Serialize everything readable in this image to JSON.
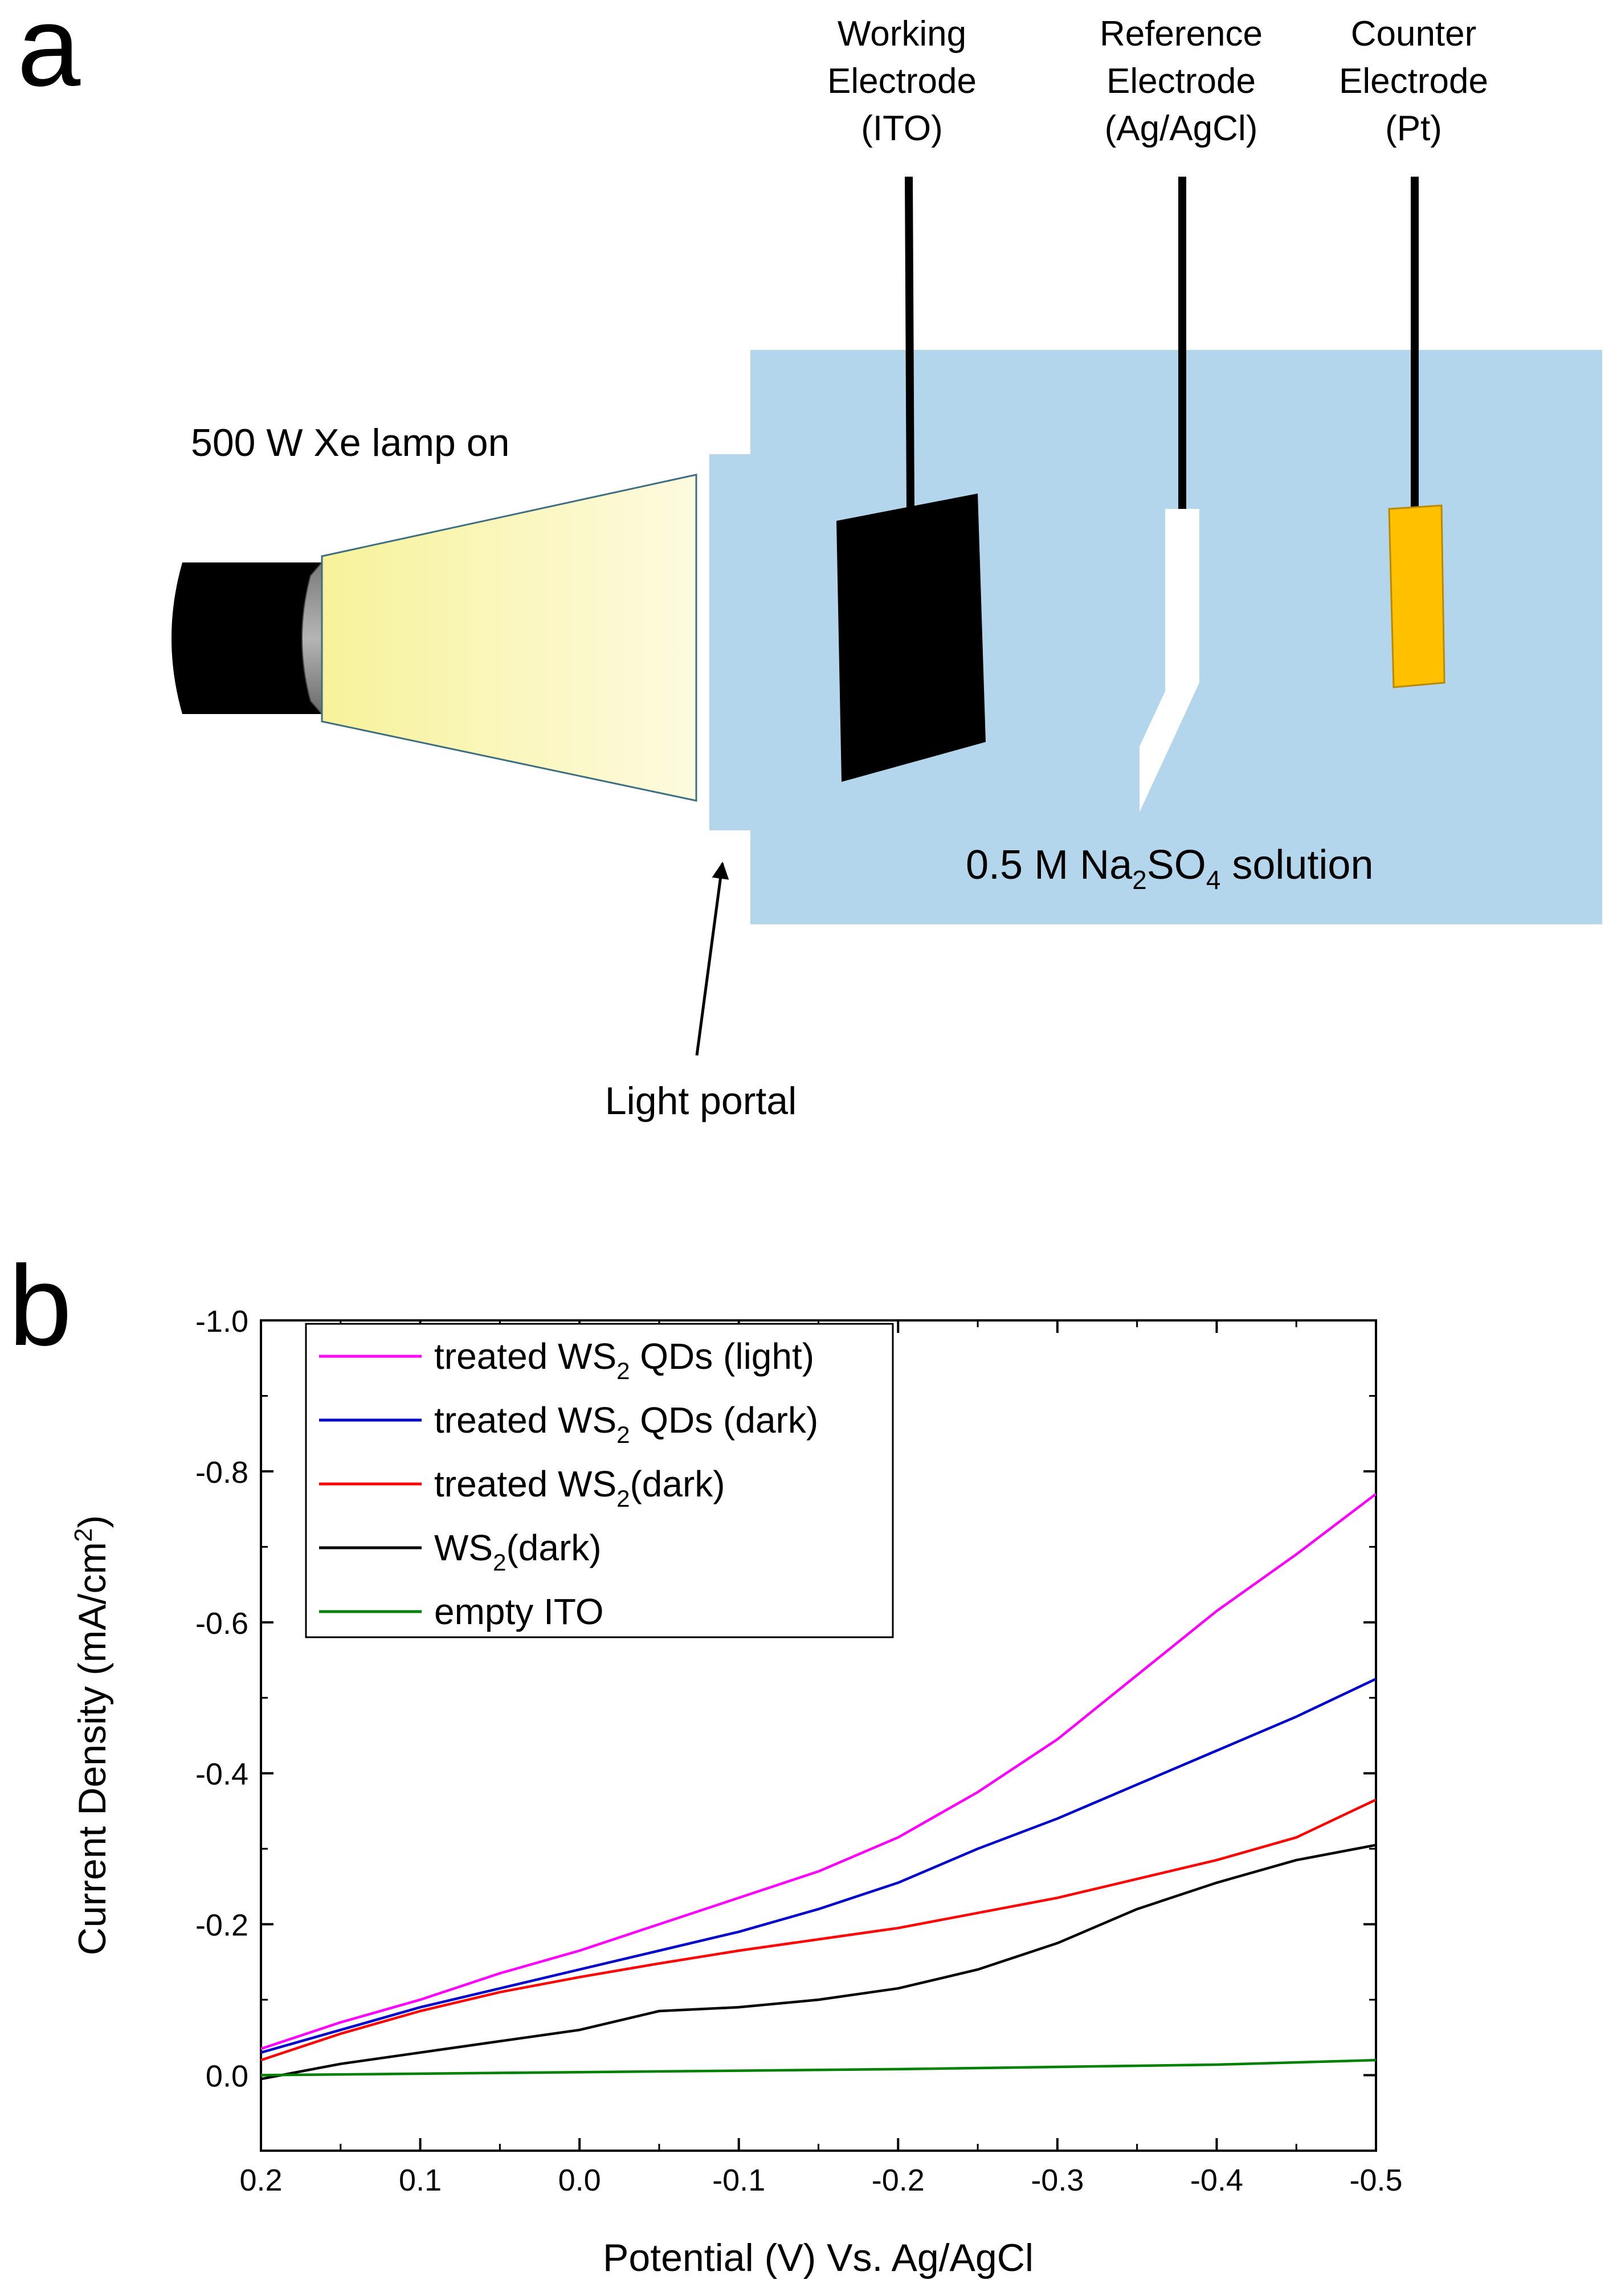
{
  "panel_a": {
    "label": "a",
    "lamp_label": "500 W Xe lamp on",
    "electrodes": [
      {
        "line1": "Working",
        "line2": "Electrode",
        "line3": "(ITO)"
      },
      {
        "line1": "Reference",
        "line2": "Electrode",
        "line3": "(Ag/AgCl)"
      },
      {
        "line1": "Counter",
        "line2": "Electrode",
        "line3": "(Pt)"
      }
    ],
    "solution": {
      "pre": "0.5 M Na",
      "sub1": "2",
      "mid": "SO",
      "sub2": "4",
      "post": " solution"
    },
    "portal_label": "Light portal",
    "colors": {
      "solution": "#b4d6ec",
      "light_beam": "#fbf8bf",
      "counter_electrode": "#ffc000",
      "lamp": "#000000"
    }
  },
  "panel_b": {
    "label": "b",
    "xlabel": "Potential (V) Vs. Ag/AgCl",
    "ylabel": {
      "pre": "Current Density (mA/cm",
      "sup": "2",
      "post": ")"
    },
    "legend": [
      {
        "pre": "treated WS",
        "sub": "2",
        "post": " QDs (light)"
      },
      {
        "pre": "treated WS",
        "sub": "2",
        "post": " QDs (dark)"
      },
      {
        "pre": "treated WS",
        "sub": "2",
        "post": "(dark)"
      },
      {
        "pre": "WS",
        "sub": "2",
        "post": "(dark)"
      },
      {
        "pre": "empty ITO",
        "sub": "",
        "post": ""
      }
    ]
  },
  "chart_data": {
    "type": "line",
    "x_reversed": true,
    "y_reversed": true,
    "xlim": [
      0.2,
      -0.5
    ],
    "ylim": [
      0.1,
      -1.0
    ],
    "xticks": [
      0.2,
      0.1,
      0.0,
      -0.1,
      -0.2,
      -0.3,
      -0.4,
      -0.5
    ],
    "xtick_labels": [
      "0.2",
      "0.1",
      "0.0",
      "-0.1",
      "-0.2",
      "-0.3",
      "-0.4",
      "-0.5"
    ],
    "yticks": [
      0.0,
      -0.2,
      -0.4,
      -0.6,
      -0.8,
      -1.0
    ],
    "ytick_labels": [
      "0.0",
      "-0.2",
      "-0.4",
      "-0.6",
      "-0.8",
      "-1.0"
    ],
    "legend_position": "top-left",
    "series": [
      {
        "name": "treated WS2 QDs (light)",
        "color": "#ff00ff",
        "x": [
          0.2,
          0.15,
          0.1,
          0.05,
          0.0,
          -0.05,
          -0.1,
          -0.15,
          -0.2,
          -0.25,
          -0.3,
          -0.35,
          -0.4,
          -0.45,
          -0.5
        ],
        "y": [
          -0.035,
          -0.07,
          -0.1,
          -0.135,
          -0.165,
          -0.2,
          -0.235,
          -0.27,
          -0.315,
          -0.375,
          -0.445,
          -0.53,
          -0.615,
          -0.69,
          -0.77
        ]
      },
      {
        "name": "treated WS2 QDs (dark)",
        "color": "#0000cc",
        "x": [
          0.2,
          0.15,
          0.1,
          0.05,
          0.0,
          -0.05,
          -0.1,
          -0.15,
          -0.2,
          -0.25,
          -0.3,
          -0.35,
          -0.4,
          -0.45,
          -0.5
        ],
        "y": [
          -0.03,
          -0.06,
          -0.09,
          -0.115,
          -0.14,
          -0.165,
          -0.19,
          -0.22,
          -0.255,
          -0.3,
          -0.34,
          -0.385,
          -0.43,
          -0.475,
          -0.525
        ]
      },
      {
        "name": "treated WS2(dark)",
        "color": "#ff0000",
        "x": [
          0.2,
          0.15,
          0.1,
          0.05,
          0.0,
          -0.05,
          -0.1,
          -0.15,
          -0.2,
          -0.25,
          -0.3,
          -0.35,
          -0.4,
          -0.45,
          -0.5
        ],
        "y": [
          -0.02,
          -0.055,
          -0.085,
          -0.11,
          -0.13,
          -0.148,
          -0.165,
          -0.18,
          -0.195,
          -0.215,
          -0.235,
          -0.26,
          -0.285,
          -0.315,
          -0.365
        ]
      },
      {
        "name": "WS2(dark)",
        "color": "#000000",
        "x": [
          0.2,
          0.15,
          0.1,
          0.05,
          0.0,
          -0.05,
          -0.1,
          -0.15,
          -0.2,
          -0.25,
          -0.3,
          -0.35,
          -0.4,
          -0.45,
          -0.5
        ],
        "y": [
          0.005,
          -0.015,
          -0.03,
          -0.045,
          -0.06,
          -0.085,
          -0.09,
          -0.1,
          -0.115,
          -0.14,
          -0.175,
          -0.22,
          -0.255,
          -0.285,
          -0.305
        ]
      },
      {
        "name": "empty ITO",
        "color": "#008000",
        "x": [
          0.2,
          0.1,
          0.0,
          -0.1,
          -0.2,
          -0.3,
          -0.4,
          -0.5
        ],
        "y": [
          0.0,
          -0.002,
          -0.004,
          -0.006,
          -0.008,
          -0.011,
          -0.014,
          -0.02
        ]
      }
    ]
  }
}
